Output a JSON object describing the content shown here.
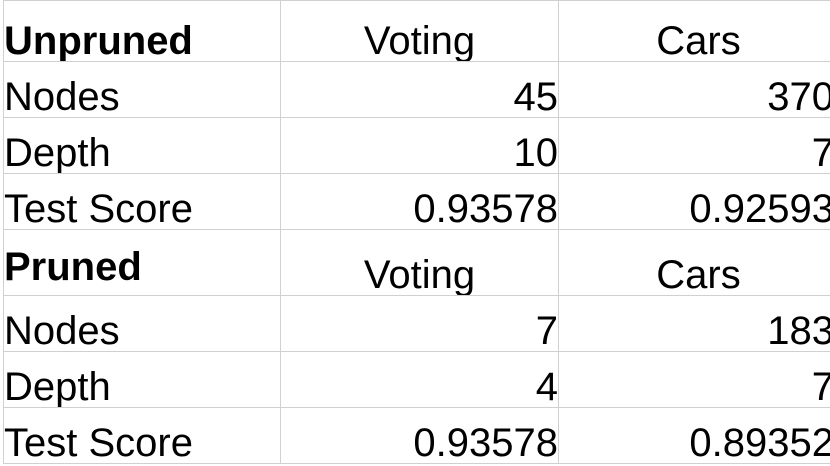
{
  "sections": [
    {
      "title": "Unpruned",
      "columns": [
        "Voting",
        "Cars"
      ],
      "rows": [
        {
          "label": "Nodes",
          "values": [
            "45",
            "370"
          ]
        },
        {
          "label": "Depth",
          "values": [
            "10",
            "7"
          ]
        },
        {
          "label": "Test Score",
          "values": [
            "0.93578",
            "0.92593"
          ]
        }
      ]
    },
    {
      "title": "Pruned",
      "columns": [
        "Voting",
        "Cars"
      ],
      "rows": [
        {
          "label": "Nodes",
          "values": [
            "7",
            "183"
          ]
        },
        {
          "label": "Depth",
          "values": [
            "4",
            "7"
          ]
        },
        {
          "label": "Test Score",
          "values": [
            "0.93578",
            "0.89352"
          ]
        }
      ]
    }
  ]
}
